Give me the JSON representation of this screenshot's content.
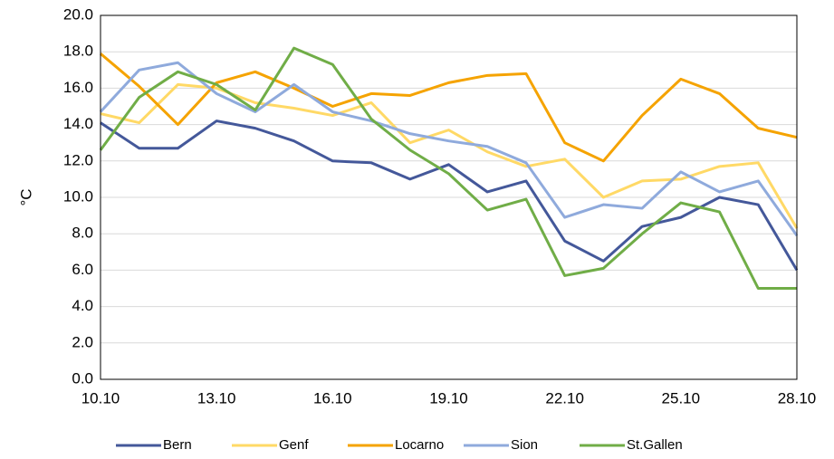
{
  "chart_data": {
    "type": "line",
    "y_label": "°C",
    "categories": [
      "10.10",
      null,
      null,
      "13.10",
      null,
      null,
      "16.10",
      null,
      null,
      "19.10",
      null,
      null,
      "22.10",
      null,
      null,
      "25.10",
      null,
      null,
      "28.10"
    ],
    "series": [
      {
        "name": "Bern",
        "color": "#44589a",
        "values": [
          14.1,
          12.7,
          12.7,
          14.2,
          13.8,
          13.1,
          12.0,
          11.9,
          11.0,
          11.8,
          10.3,
          10.9,
          7.6,
          6.5,
          8.4,
          8.9,
          10.0,
          9.6,
          6.0
        ]
      },
      {
        "name": "Genf",
        "color": "#ffd966",
        "values": [
          14.6,
          14.1,
          16.2,
          16.0,
          15.2,
          14.9,
          14.5,
          15.2,
          13.0,
          13.7,
          12.5,
          11.7,
          12.1,
          10.0,
          10.9,
          11.0,
          11.7,
          11.9,
          8.3
        ]
      },
      {
        "name": "Locarno",
        "color": "#f5a300",
        "values": [
          17.9,
          16.1,
          14.0,
          16.3,
          16.9,
          16.0,
          15.0,
          15.7,
          15.6,
          16.3,
          16.7,
          16.8,
          13.0,
          12.0,
          14.5,
          16.5,
          15.7,
          13.8,
          13.3
        ]
      },
      {
        "name": "Sion",
        "color": "#8faadc",
        "values": [
          14.7,
          17.0,
          17.4,
          15.7,
          14.7,
          16.2,
          14.7,
          14.2,
          13.5,
          13.1,
          12.8,
          11.9,
          8.9,
          9.6,
          9.4,
          11.4,
          10.3,
          10.9,
          7.9
        ]
      },
      {
        "name": "St.Gallen",
        "color": "#70ad47",
        "values": [
          12.6,
          15.5,
          16.9,
          16.2,
          14.8,
          18.2,
          17.3,
          14.3,
          12.6,
          11.3,
          9.3,
          9.9,
          5.7,
          6.1,
          8.0,
          9.7,
          9.2,
          5.0,
          5.0
        ]
      }
    ],
    "ylim": [
      0,
      20
    ],
    "yticks": [
      {
        "value": 0,
        "label": "0.0"
      },
      {
        "value": 2,
        "label": "2.0"
      },
      {
        "value": 4,
        "label": "4.0"
      },
      {
        "value": 6,
        "label": "6.0"
      },
      {
        "value": 8,
        "label": "8.0"
      },
      {
        "value": 10,
        "label": "10.0"
      },
      {
        "value": 12,
        "label": "12.0"
      },
      {
        "value": 14,
        "label": "14.0"
      },
      {
        "value": 16,
        "label": "16.0"
      },
      {
        "value": 18,
        "label": "18.0"
      },
      {
        "value": 20,
        "label": "20.0"
      }
    ],
    "grid": true,
    "legend": "bottom"
  }
}
